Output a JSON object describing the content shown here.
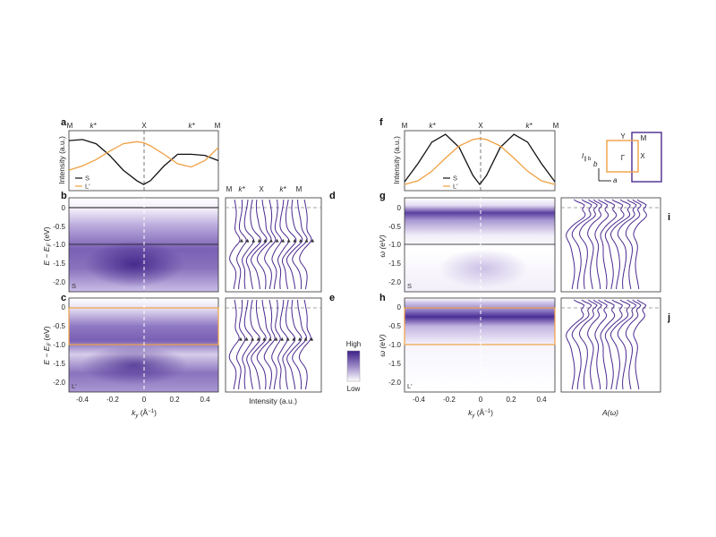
{
  "colors": {
    "purple": "#4b2a8f",
    "orange": "#f0a043",
    "black": "#111111",
    "cmap_high": "#3c1f86",
    "cmap_low": "#ffffff"
  },
  "panels": {
    "a": "a",
    "b": "b",
    "c": "c",
    "d": "d",
    "e": "e",
    "f": "f",
    "g": "g",
    "h": "h",
    "i": "i",
    "j": "j"
  },
  "labels": {
    "intensity_au": "Intensity (a.u.)",
    "ef_axis": "E − E",
    "ef_sub": "F",
    "ev_unit": " (eV)",
    "omega_axis": "ω (eV)",
    "ky_axis": "k",
    "ky_sub": "y",
    "ky_unit": " (Å",
    "ky_unit_sup": "−1",
    "ky_unit_end": ")",
    "intensity_bottom": "Intensity (a.u.)",
    "a_omega": "A(ω)",
    "high": "High",
    "low": "Low",
    "S": "S",
    "L": "L",
    "L_sup": "′",
    "L_prime_leg": "L′"
  },
  "kpath": [
    "M",
    "k*",
    "X",
    "k*",
    "M"
  ],
  "ky_ticks": [
    "-0.4",
    "-0.2",
    "0",
    "0.2",
    "0.4"
  ],
  "e_ticks": [
    "0",
    "-0.5",
    "-1.0",
    "-1.5",
    "-2.0"
  ],
  "bz": {
    "gamma": "Γ",
    "Y": "Y",
    "M": "M",
    "X": "X",
    "field_label": "I",
    "field_sub": "∥ b",
    "axis_b": "b",
    "axis_a": "a"
  },
  "chart_data": [
    {
      "panel": "a",
      "type": "line",
      "ylabel": "Intensity (a.u.)",
      "xlim": [
        -0.55,
        0.55
      ],
      "series": [
        {
          "name": "S",
          "color": "#111111",
          "x": [
            -0.55,
            -0.45,
            -0.35,
            -0.25,
            -0.15,
            -0.05,
            0,
            0.05,
            0.15,
            0.25,
            0.35,
            0.45,
            0.55
          ],
          "y": [
            0.88,
            0.9,
            0.82,
            0.6,
            0.32,
            0.12,
            0.05,
            0.12,
            0.4,
            0.62,
            0.62,
            0.6,
            0.5
          ]
        },
        {
          "name": "L′",
          "color": "#f0a043",
          "x": [
            -0.55,
            -0.45,
            -0.35,
            -0.25,
            -0.15,
            -0.05,
            0,
            0.05,
            0.15,
            0.25,
            0.35,
            0.45,
            0.55
          ],
          "y": [
            0.32,
            0.4,
            0.52,
            0.68,
            0.82,
            0.86,
            0.84,
            0.78,
            0.62,
            0.44,
            0.38,
            0.5,
            0.75
          ]
        }
      ]
    },
    {
      "panel": "f",
      "type": "line",
      "ylabel": "Intensity (a.u.)",
      "xlim": [
        -0.55,
        0.55
      ],
      "series": [
        {
          "name": "S",
          "color": "#111111",
          "x": [
            -0.55,
            -0.45,
            -0.35,
            -0.25,
            -0.15,
            -0.05,
            0,
            0.05,
            0.15,
            0.25,
            0.35,
            0.45,
            0.55
          ],
          "y": [
            0.1,
            0.45,
            0.85,
            1.0,
            0.75,
            0.22,
            0.05,
            0.22,
            0.75,
            1.0,
            0.85,
            0.45,
            0.1
          ]
        },
        {
          "name": "L′",
          "color": "#f0a043",
          "x": [
            -0.55,
            -0.45,
            -0.35,
            -0.25,
            -0.15,
            -0.05,
            0,
            0.05,
            0.15,
            0.25,
            0.35,
            0.45,
            0.55
          ],
          "y": [
            0.05,
            0.12,
            0.3,
            0.55,
            0.78,
            0.9,
            0.92,
            0.9,
            0.78,
            0.55,
            0.3,
            0.12,
            0.05
          ]
        }
      ]
    },
    {
      "panel": "b",
      "type": "heatmap",
      "xlabel": "k_y (Å^-1)",
      "ylabel": "E − E_F (eV)",
      "xlim": [
        -0.55,
        0.55
      ],
      "ylim": [
        -2.2,
        0.2
      ],
      "label": "S"
    },
    {
      "panel": "c",
      "type": "heatmap",
      "xlabel": "k_y (Å^-1)",
      "ylabel": "E − E_F (eV)",
      "xlim": [
        -0.55,
        0.55
      ],
      "ylim": [
        -2.2,
        0.2
      ],
      "label": "L′"
    },
    {
      "panel": "g",
      "type": "heatmap",
      "ylabel": "ω (eV)",
      "xlim": [
        -0.55,
        0.55
      ],
      "ylim": [
        -2.2,
        0.2
      ],
      "label": "S"
    },
    {
      "panel": "h",
      "type": "heatmap",
      "xlabel": "k_y (Å^-1)",
      "ylabel": "ω (eV)",
      "xlim": [
        -0.55,
        0.55
      ],
      "ylim": [
        -2.2,
        0.2
      ],
      "label": "L′"
    },
    {
      "panel": "d",
      "type": "line",
      "note_type": "EDC stack",
      "curves": 13
    },
    {
      "panel": "e",
      "type": "line",
      "note_type": "EDC stack",
      "curves": 13
    },
    {
      "panel": "i",
      "type": "line",
      "note_type": "spectral function stack",
      "curves": 11
    },
    {
      "panel": "j",
      "type": "line",
      "note_type": "spectral function stack",
      "curves": 11
    }
  ]
}
